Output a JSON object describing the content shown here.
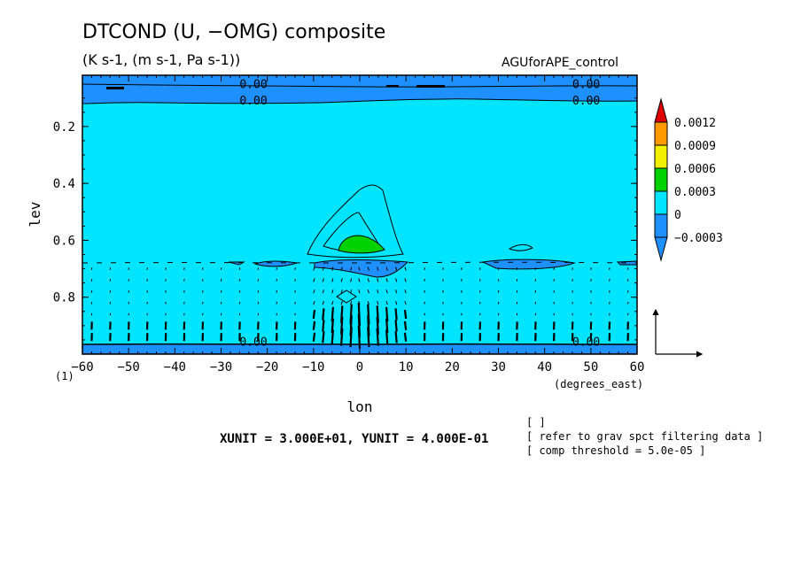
{
  "chart_data": {
    "type": "contour",
    "title": "DTCOND (U, −OMG) composite",
    "units": "(K s-1, (m s-1, Pa s-1))",
    "experiment": "AGUforAPE_control",
    "xlabel": "lon",
    "xunits": "(degrees_east)",
    "ylabel": "lev",
    "y_axis_origin_label": "(1)",
    "xlim": [
      -60,
      60
    ],
    "ylim": [
      1.0,
      0.02
    ],
    "x_ticks": [
      -60,
      -50,
      -40,
      -30,
      -20,
      -10,
      0,
      10,
      20,
      30,
      40,
      50,
      60
    ],
    "x_tick_labels": [
      "−60",
      "−50",
      "−40",
      "−30",
      "−20",
      "−10",
      "0",
      "10",
      "20",
      "30",
      "40",
      "50",
      "60"
    ],
    "y_ticks": [
      0.2,
      0.4,
      0.6,
      0.8
    ],
    "y_tick_labels": [
      "0.2",
      "0.4",
      "0.6",
      "0.8"
    ],
    "contour_labels": [
      {
        "text": "0.00",
        "lon": -23,
        "lev": 0.05
      },
      {
        "text": "0.00",
        "lon": -23,
        "lev": 0.107
      },
      {
        "text": "0.00",
        "lon": 49,
        "lev": 0.05
      },
      {
        "text": "0.00",
        "lon": 49,
        "lev": 0.107
      },
      {
        "text": "0.00",
        "lon": -23,
        "lev": 0.955
      },
      {
        "text": "0.00",
        "lon": 49,
        "lev": 0.955
      }
    ],
    "colorbar": {
      "levels": [
        -0.0003,
        0,
        0.0003,
        0.0006,
        0.0009,
        0.0012
      ],
      "labels": [
        "−0.0003",
        "0",
        "0.0003",
        "0.0006",
        "0.0009",
        "0.0012"
      ],
      "colors": [
        "#1e90ff",
        "#00e5ff",
        "#00d200",
        "#f0f000",
        "#ff9900",
        "#e00000"
      ]
    },
    "shading": {
      "background_color": "#00e5ff",
      "negative_color": "#1e90ff",
      "positive_color": "#00d200",
      "negative_regions": [
        "upper band lev 0.02-0.10",
        "bottom band lev 0.96-1.0",
        "lens near lev 0.67"
      ],
      "positive_regions": [
        "maximum near lon 0, lev 0.6"
      ]
    },
    "vector_reference": {
      "xunit": "3.000E+01",
      "yunit": "4.000E-01"
    }
  },
  "footer": {
    "xunit_text": "XUNIT = 3.000E+01, YUNIT = 4.000E-01",
    "note1": "[  ]",
    "note2": "[ refer to grav spct filtering data ]",
    "note3": "[ comp threshold = 5.0e-05 ]"
  }
}
